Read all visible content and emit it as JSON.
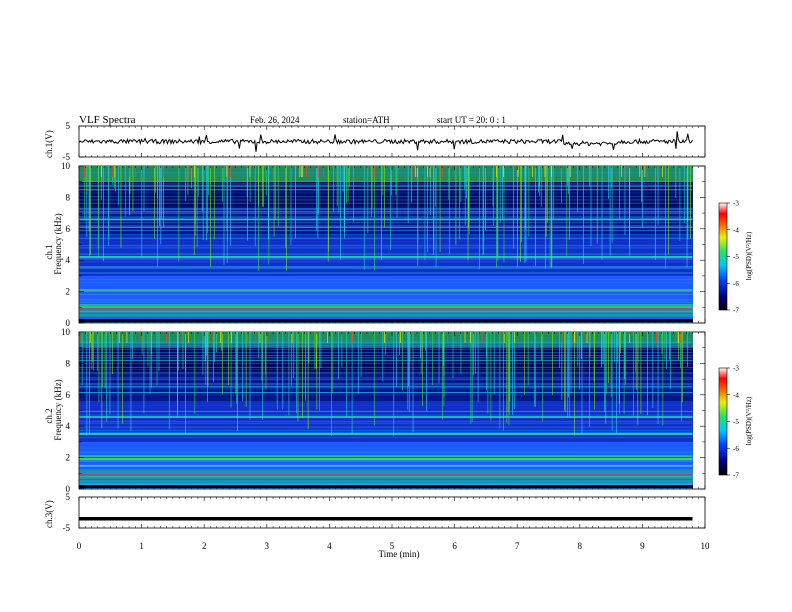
{
  "header": {
    "title": "VLF  Spectra",
    "date": "Feb. 26, 2024",
    "station": "station=ATH",
    "start": "start  UT  =   20: 0  : 1"
  },
  "chart_data": [
    {
      "type": "line",
      "panel": "ch1-waveform",
      "ylabel": "ch.1(V)",
      "ylim": [
        -5,
        5
      ],
      "yticks": [
        "5",
        "-5"
      ],
      "approx_level": 0,
      "color": "#000000"
    },
    {
      "type": "heatmap",
      "panel": "ch1-spectrogram",
      "ylabel": "ch.1\nFrequency (kHz)",
      "ylim": [
        0,
        10
      ],
      "yticks": [
        "0",
        "2",
        "4",
        "6",
        "8",
        "10"
      ],
      "colorbar": {
        "label": "log(PSD)(V²/Hz)",
        "range": [
          -7,
          -3
        ],
        "ticks": [
          "-3",
          "-4",
          "-5",
          "-6",
          "-7"
        ]
      },
      "bands_khz": [
        1.0,
        2.1,
        4.2,
        6.6
      ]
    },
    {
      "type": "heatmap",
      "panel": "ch2-spectrogram",
      "ylabel": "ch.2\nFrequency (kHz)",
      "ylim": [
        0,
        10
      ],
      "yticks": [
        "0",
        "2",
        "4",
        "6",
        "8",
        "10"
      ],
      "colorbar": {
        "label": "log(PSD)(V²/Hz)",
        "range": [
          -7,
          -3
        ],
        "ticks": [
          "-3",
          "-4",
          "-5",
          "-6",
          "-7"
        ]
      },
      "bands_khz": [
        1.9,
        2.1,
        3.5,
        4.6
      ]
    },
    {
      "type": "line",
      "panel": "ch3-waveform",
      "ylabel": "ch.3(V)",
      "ylim": [
        -5,
        5
      ],
      "yticks": [
        "5",
        "-5"
      ],
      "approx_level": -2,
      "color": "#000000"
    }
  ],
  "xaxis": {
    "label": "Time  (min)",
    "range": [
      0,
      10
    ],
    "ticks": [
      "0",
      "1",
      "2",
      "3",
      "4",
      "5",
      "6",
      "7",
      "8",
      "9",
      "10"
    ],
    "data_end": 9.8
  },
  "colors": {
    "background_low": "#000a60",
    "mid": "#1f7cff",
    "high": "#3ae84a",
    "peak": "#e02010"
  }
}
